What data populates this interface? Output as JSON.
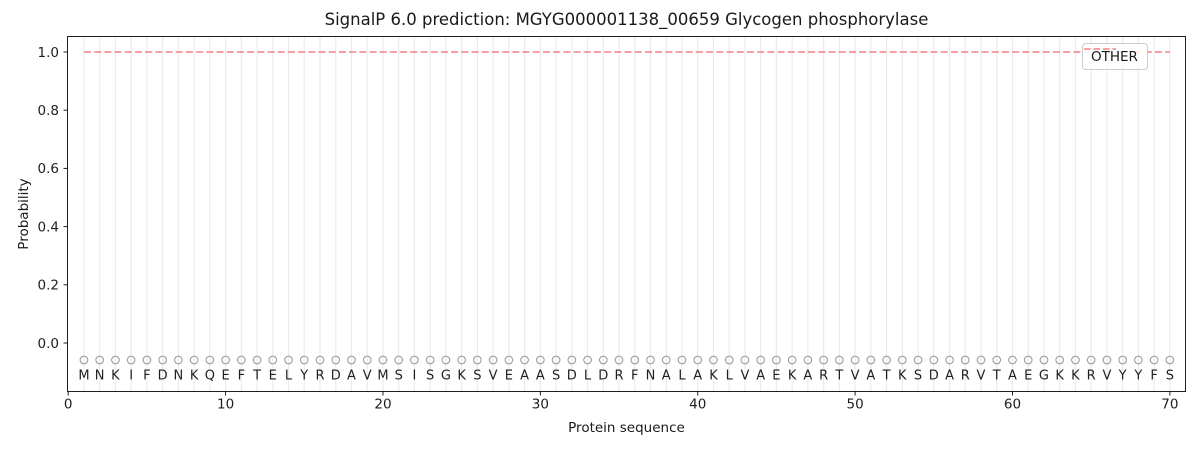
{
  "chart_data": {
    "type": "line",
    "title": "SignalP 6.0 prediction: MGYG000001138_00659 Glycogen phosphorylase",
    "xlabel": "Protein sequence",
    "ylabel": "Probability",
    "x_ticks": [
      "0",
      "10",
      "20",
      "30",
      "40",
      "50",
      "60",
      "70"
    ],
    "y_ticks": [
      "0.0",
      "0.2",
      "0.4",
      "0.6",
      "0.8",
      "1.0"
    ],
    "xlim": [
      -0.1,
      71.0
    ],
    "ylim": [
      -0.17,
      1.06
    ],
    "grid": {
      "vertical_gridline_per_residue": true,
      "horizontal": false
    },
    "legend": {
      "position": "upper-right",
      "entries": [
        {
          "label": "OTHER",
          "line_style": "dashed",
          "color": "#f08080"
        }
      ]
    },
    "sequence": "MNKIFDNKQEFTELYRDAVMSISGKSVEAASDLDRFNALAKLVAEKARTVATKSDARVTAEGKKRVYYFS",
    "sequence_length": 70,
    "series": [
      {
        "name": "OTHER",
        "line_style": "dashed",
        "color": "#f08080",
        "x_start": 1,
        "x_end": 70,
        "y_constant": 1.0
      }
    ],
    "residue_markers": {
      "shape": "open-circle",
      "color": "#9e9e9e",
      "y_value": -0.06
    }
  },
  "colors": {
    "background": "#ffffff",
    "spine": "#1f1f1f",
    "grid": "#ebebeb",
    "tick_label": "#1f1f1f",
    "sequence_letter": "#1f1f1f",
    "marker": "#9e9e9e",
    "other_line": "#f08080",
    "legend_border": "#cccccc"
  }
}
